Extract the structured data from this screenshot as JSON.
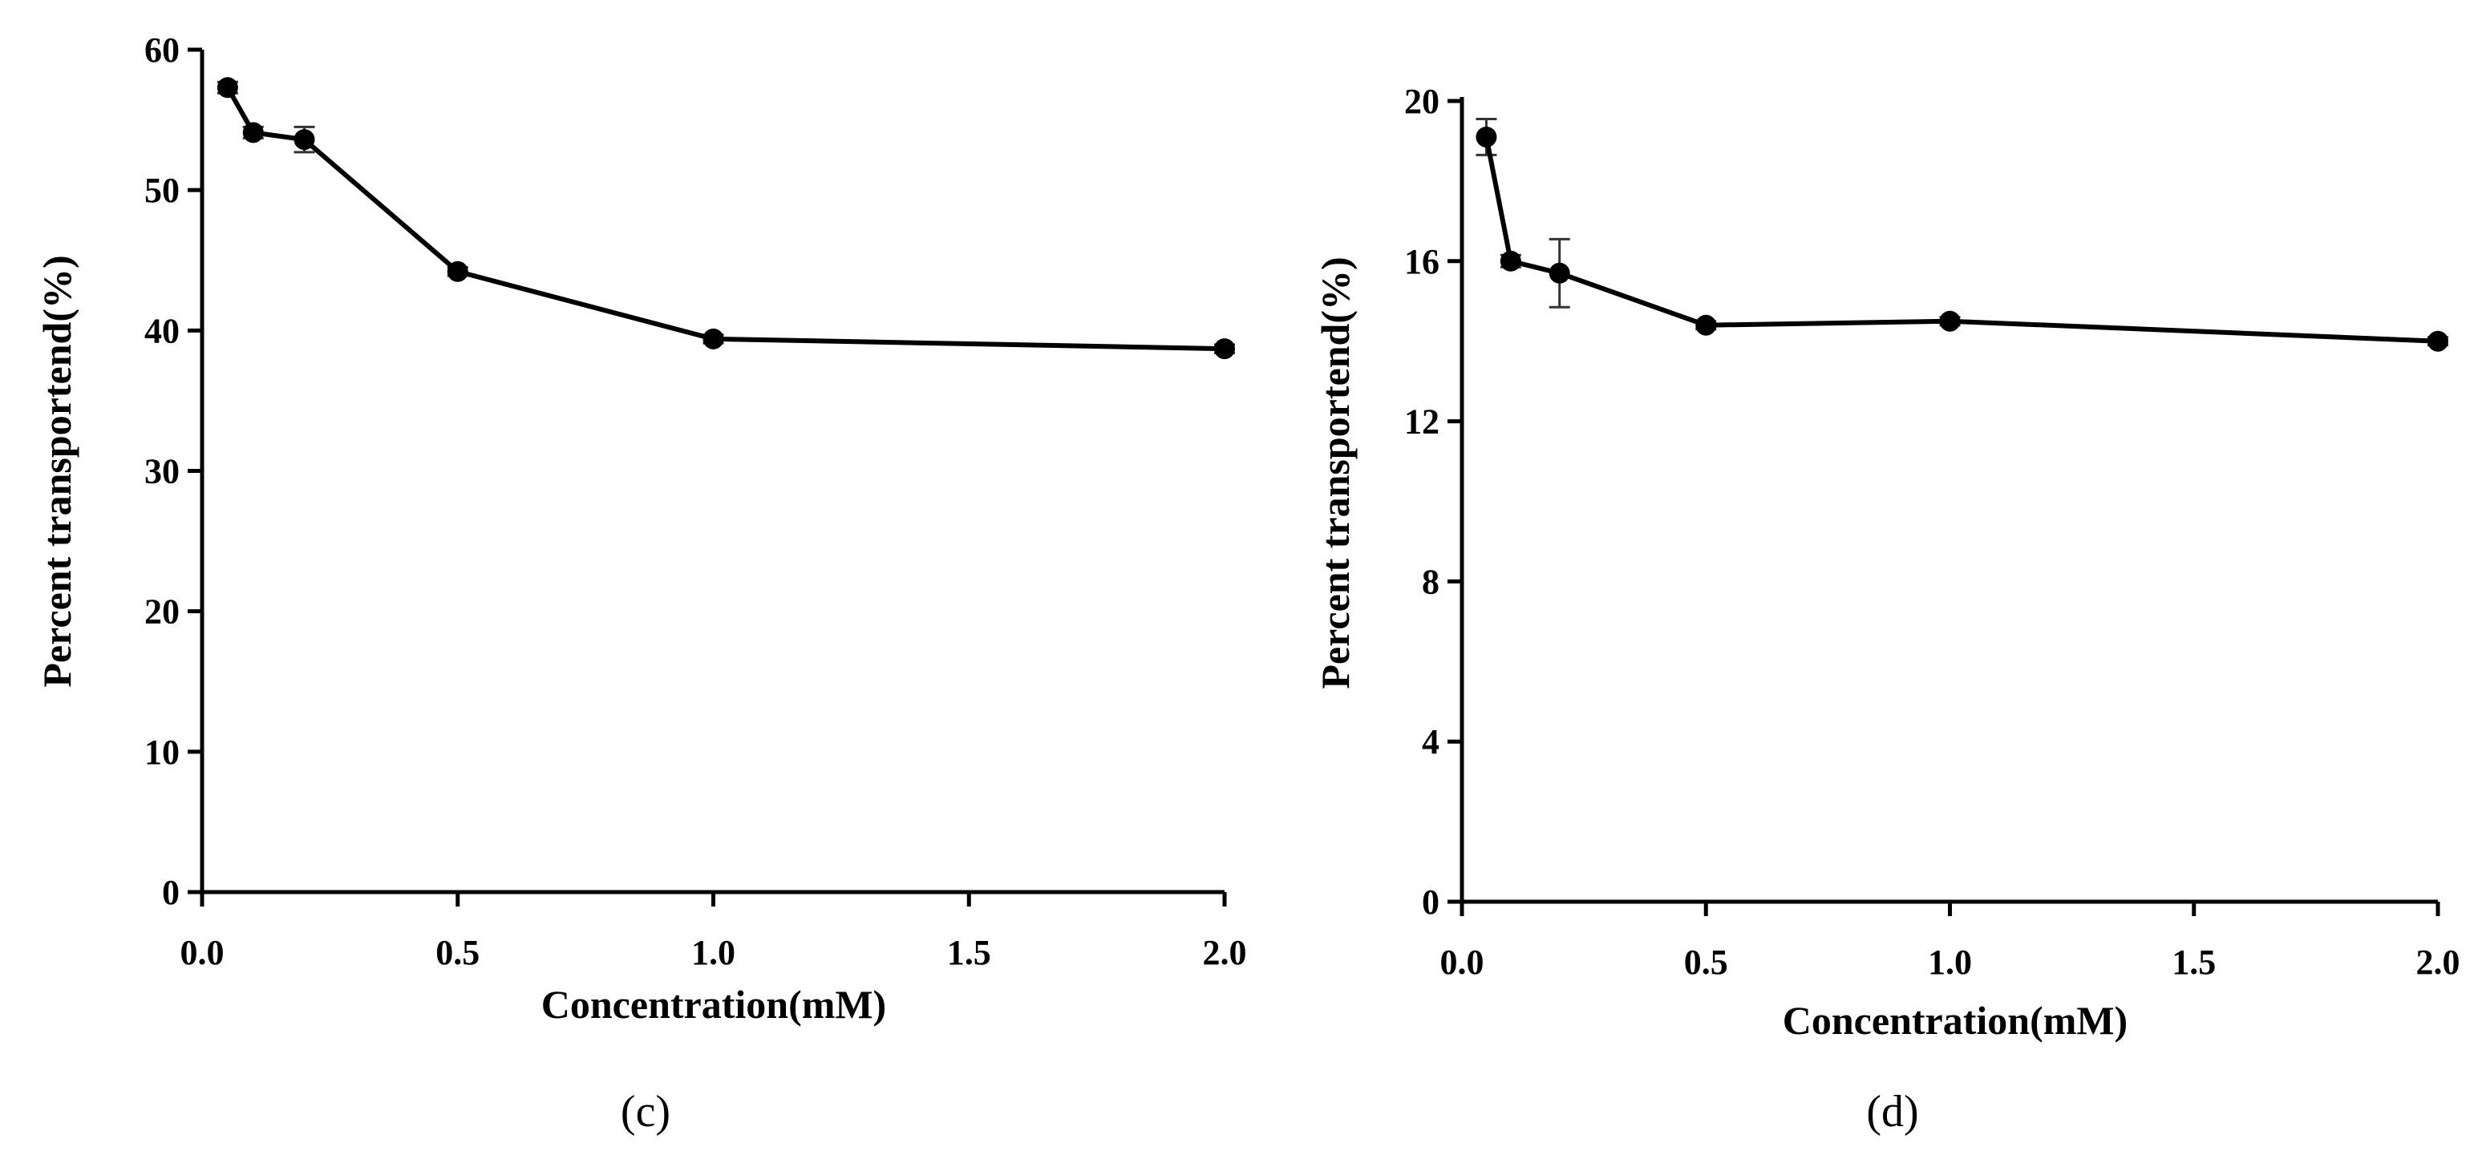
{
  "chart_data": [
    {
      "type": "line",
      "panel_label": "c",
      "panel_label_text": "(c)",
      "xlabel": "Concentration(mM)",
      "ylabel": "Percent transportend(%)",
      "xlim": [
        0,
        2.0
      ],
      "ylim": [
        0,
        60
      ],
      "xticks": [
        0.0,
        0.5,
        1.0,
        1.5,
        2.0
      ],
      "xtick_labels": [
        "0.0",
        "0.5",
        "1.0",
        "1.5",
        "2.0"
      ],
      "yticks": [
        0,
        10,
        20,
        30,
        40,
        50,
        60
      ],
      "ytick_labels": [
        "0",
        "10",
        "20",
        "30",
        "40",
        "50",
        "60"
      ],
      "grid": false,
      "series": [
        {
          "name": "Percent transported",
          "color": "#000000",
          "x": [
            0.05,
            0.1,
            0.2,
            0.5,
            1.0,
            2.0
          ],
          "y": [
            57.3,
            54.1,
            53.6,
            44.2,
            39.4,
            38.7
          ],
          "error": [
            0.4,
            0.4,
            0.9,
            0.3,
            0.3,
            0.3
          ]
        }
      ]
    },
    {
      "type": "line",
      "panel_label": "d",
      "panel_label_text": "(d)",
      "xlabel": "Concentration(mM)",
      "ylabel": "Percent transportend(%)",
      "xlim": [
        0,
        2.0
      ],
      "ylim": [
        0,
        20
      ],
      "xticks": [
        0.0,
        0.5,
        1.0,
        1.5,
        2.0
      ],
      "xtick_labels": [
        "0.0",
        "0.5",
        "1.0",
        "1.5",
        "2.0"
      ],
      "yticks": [
        0,
        4,
        8,
        12,
        16,
        20
      ],
      "ytick_labels": [
        "0",
        "4",
        "8",
        "12",
        "16",
        "20"
      ],
      "grid": false,
      "series": [
        {
          "name": "Percent transported",
          "color": "#000000",
          "x": [
            0.05,
            0.1,
            0.2,
            0.5,
            1.0,
            2.0
          ],
          "y": [
            19.1,
            16.0,
            15.7,
            14.4,
            14.5,
            14.0
          ],
          "error": [
            0.45,
            0.15,
            0.85,
            0.1,
            0.1,
            0.1
          ]
        }
      ]
    }
  ]
}
